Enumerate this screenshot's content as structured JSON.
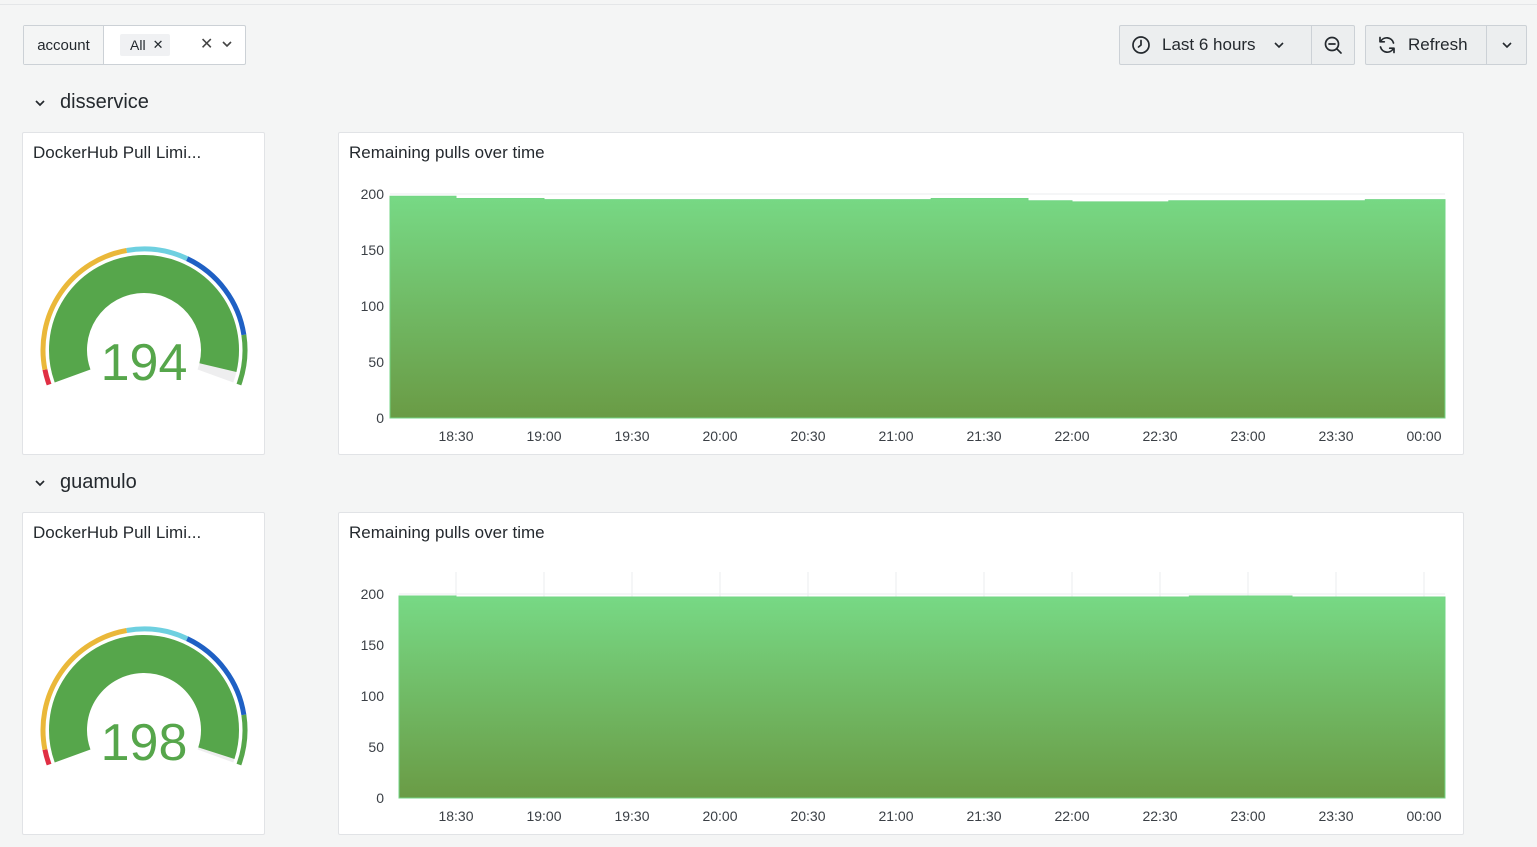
{
  "toolbar": {
    "variable": {
      "label": "account",
      "chip": "All",
      "chip_remove": "✕",
      "clear": "✕"
    },
    "time_range": {
      "label": "Last 6 hours"
    },
    "refresh": {
      "label": "Refresh"
    },
    "icons": {
      "clock": "clock-icon",
      "zoom_out": "zoom-out-icon",
      "refresh": "refresh-icon",
      "chevron": "chevron-down-icon"
    }
  },
  "rows": [
    {
      "title": "disservice",
      "gauge": {
        "title": "DockerHub Pull Limi...",
        "value": 194,
        "min": 0,
        "max": 200,
        "threshold_colors": [
          "#e02f44",
          "#eab839",
          "#6ed0e0",
          "#1f60c4",
          "#56a64b"
        ],
        "fill_color": "#56a64b"
      },
      "chart": {
        "title": "Remaining pulls over time"
      }
    },
    {
      "title": "guamulo",
      "gauge": {
        "title": "DockerHub Pull Limi...",
        "value": 198,
        "min": 0,
        "max": 200,
        "threshold_colors": [
          "#e02f44",
          "#eab839",
          "#6ed0e0",
          "#1f60c4",
          "#56a64b"
        ],
        "fill_color": "#56a64b"
      },
      "chart": {
        "title": "Remaining pulls over time"
      }
    }
  ],
  "chart_data": [
    {
      "type": "area",
      "title": "Remaining pulls over time",
      "xlabel": "",
      "ylabel": "",
      "x_ticks": [
        "18:30",
        "19:00",
        "19:30",
        "20:00",
        "20:30",
        "21:00",
        "21:30",
        "22:00",
        "22:30",
        "23:00",
        "23:30",
        "00:00"
      ],
      "y_ticks": [
        0,
        50,
        100,
        150,
        200
      ],
      "ylim": [
        0,
        200
      ],
      "grid": "horizontal",
      "series": [
        {
          "x": [
            "18:08",
            "18:30",
            "19:00",
            "20:00",
            "21:00",
            "21:12",
            "21:30",
            "21:45",
            "22:00",
            "22:30",
            "22:33",
            "23:00",
            "23:30",
            "23:40",
            "00:08"
          ],
          "values": [
            198,
            196,
            195,
            195,
            195,
            196,
            196,
            194,
            193,
            193,
            194,
            194,
            194,
            195,
            195
          ]
        }
      ],
      "colors": {
        "fill_top": "#77d985",
        "fill_bottom": "#6a9b45",
        "line": "#73d585"
      }
    },
    {
      "type": "area",
      "title": "Remaining pulls over time",
      "xlabel": "",
      "ylabel": "",
      "x_ticks": [
        "18:30",
        "19:00",
        "19:30",
        "20:00",
        "20:30",
        "21:00",
        "21:30",
        "22:00",
        "22:30",
        "23:00",
        "23:30",
        "00:00"
      ],
      "y_ticks": [
        0,
        50,
        100,
        150,
        200
      ],
      "ylim": [
        0,
        200
      ],
      "grid": "both",
      "series": [
        {
          "x": [
            "18:11",
            "18:30",
            "19:30",
            "20:30",
            "21:30",
            "22:30",
            "22:40",
            "23:00",
            "23:15",
            "00:08"
          ],
          "values": [
            198,
            197,
            197,
            197,
            197,
            197,
            198,
            198,
            197,
            197
          ]
        }
      ],
      "colors": {
        "fill_top": "#77d985",
        "fill_bottom": "#6a9b45",
        "line": "#73d585"
      }
    }
  ]
}
